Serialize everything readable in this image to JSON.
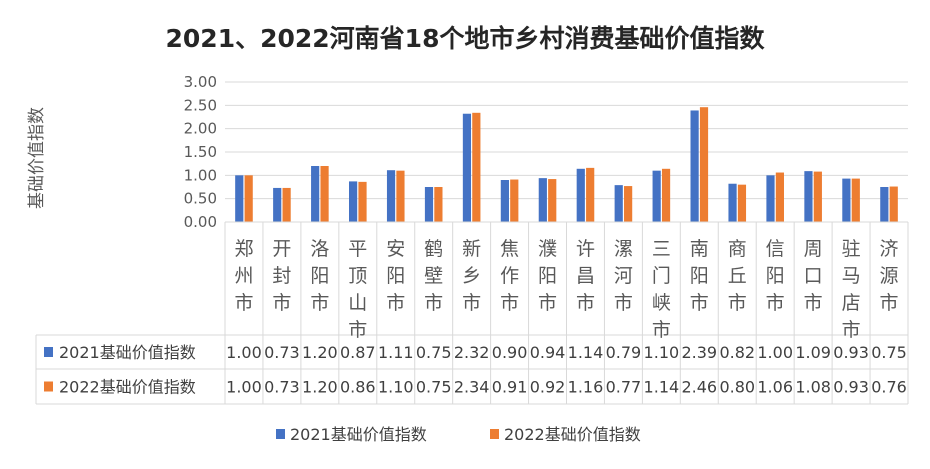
{
  "chart_data": {
    "type": "bar",
    "title": "2021、2022河南省18个地市乡村消费基础价值指数",
    "ylabel": "基础价值指数",
    "xlabel": "",
    "ylim": [
      0,
      3.0
    ],
    "yticks": [
      "0.00",
      "0.50",
      "1.00",
      "1.50",
      "2.00",
      "2.50",
      "3.00"
    ],
    "grid": true,
    "legend_position": "bottom",
    "data_table": true,
    "categories": [
      "郑州市",
      "开封市",
      "洛阳市",
      "平顶山市",
      "安阳市",
      "鹤壁市",
      "新乡市",
      "焦作市",
      "濮阳市",
      "许昌市",
      "漯河市",
      "三门峡市",
      "南阳市",
      "商丘市",
      "信阳市",
      "周口市",
      "驻马店市",
      "济源市"
    ],
    "series": [
      {
        "name": "2021基础价值指数",
        "color": "#4472C4",
        "values": [
          1.0,
          0.73,
          1.2,
          0.87,
          1.11,
          0.75,
          2.32,
          0.9,
          0.94,
          1.14,
          0.79,
          1.1,
          2.39,
          0.82,
          1.0,
          1.09,
          0.93,
          0.75
        ],
        "labels": [
          "1.00",
          "0.73",
          "1.20",
          "0.87",
          "1.11",
          "0.75",
          "2.32",
          "0.90",
          "0.94",
          "1.14",
          "0.79",
          "1.10",
          "2.39",
          "0.82",
          "1.00",
          "1.09",
          "0.93",
          "0.75"
        ]
      },
      {
        "name": "2022基础价值指数",
        "color": "#ED7D31",
        "values": [
          1.0,
          0.73,
          1.2,
          0.86,
          1.1,
          0.75,
          2.34,
          0.91,
          0.92,
          1.16,
          0.77,
          1.14,
          2.46,
          0.8,
          1.06,
          1.08,
          0.93,
          0.76
        ],
        "labels": [
          "1.00",
          "0.73",
          "1.20",
          "0.86",
          "1.10",
          "0.75",
          "2.34",
          "0.91",
          "0.92",
          "1.16",
          "0.77",
          "1.14",
          "2.46",
          "0.80",
          "1.06",
          "1.08",
          "0.93",
          "0.76"
        ]
      }
    ]
  }
}
